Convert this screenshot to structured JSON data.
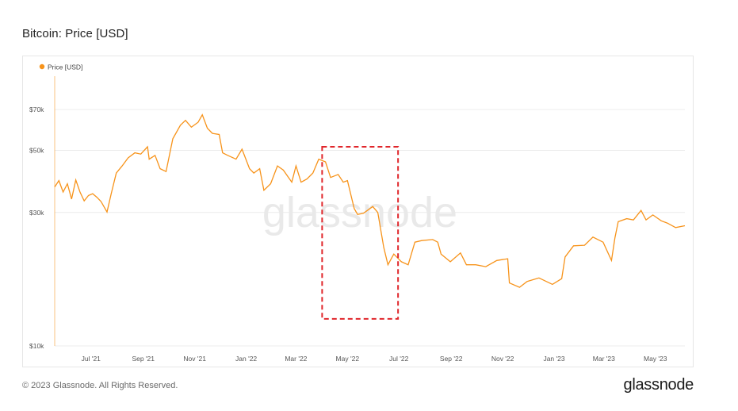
{
  "header": {
    "title": "Bitcoin: Price [USD]"
  },
  "footer": {
    "copyright": "© 2023 Glassnode. All Rights Reserved.",
    "brand": "glassnode"
  },
  "watermark": "glassnode",
  "colors": {
    "series": "#f7931a",
    "highlight": "#e0262b",
    "grid": "#ececec",
    "axis_text": "#555555"
  },
  "chart_data": {
    "type": "line",
    "title": "Bitcoin: Price [USD]",
    "xlabel": "",
    "ylabel": "",
    "x_ticks": [
      "Jul '21",
      "Sep '21",
      "Nov '21",
      "Jan '22",
      "Mar '22",
      "May '22",
      "Jul '22",
      "Sep '22",
      "Nov '22",
      "Jan '23",
      "Mar '23",
      "May '23"
    ],
    "y_ticks": [
      "$10k",
      "$30k",
      "$50k",
      "$70k"
    ],
    "y_tick_values": [
      10000,
      30000,
      50000,
      70000
    ],
    "ylim": [
      10000,
      70000
    ],
    "y_scale": "log",
    "xlim": [
      "2021-05-19",
      "2023-06-05"
    ],
    "legend": {
      "position": "top-left"
    },
    "grid": {
      "horizontal": true,
      "vertical": false
    },
    "series": [
      {
        "name": "Price [USD]",
        "color": "#f7931a",
        "x": [
          "2021-05-19",
          "2021-05-24",
          "2021-05-29",
          "2021-06-03",
          "2021-06-08",
          "2021-06-13",
          "2021-06-18",
          "2021-06-23",
          "2021-06-28",
          "2021-07-03",
          "2021-07-08",
          "2021-07-13",
          "2021-07-20",
          "2021-07-25",
          "2021-07-31",
          "2021-08-07",
          "2021-08-14",
          "2021-08-22",
          "2021-08-29",
          "2021-09-06",
          "2021-09-08",
          "2021-09-15",
          "2021-09-21",
          "2021-09-28",
          "2021-10-06",
          "2021-10-15",
          "2021-10-21",
          "2021-10-28",
          "2021-11-05",
          "2021-11-10",
          "2021-11-16",
          "2021-11-22",
          "2021-11-30",
          "2021-12-04",
          "2021-12-10",
          "2021-12-20",
          "2021-12-27",
          "2022-01-05",
          "2022-01-10",
          "2022-01-17",
          "2022-01-22",
          "2022-01-30",
          "2022-02-07",
          "2022-02-14",
          "2022-02-24",
          "2022-03-01",
          "2022-03-07",
          "2022-03-14",
          "2022-03-21",
          "2022-03-28",
          "2022-04-05",
          "2022-04-11",
          "2022-04-20",
          "2022-04-26",
          "2022-05-01",
          "2022-05-09",
          "2022-05-13",
          "2022-05-20",
          "2022-05-31",
          "2022-06-06",
          "2022-06-13",
          "2022-06-18",
          "2022-06-25",
          "2022-07-04",
          "2022-07-12",
          "2022-07-20",
          "2022-07-28",
          "2022-08-10",
          "2022-08-16",
          "2022-08-20",
          "2022-08-31",
          "2022-09-12",
          "2022-09-19",
          "2022-09-30",
          "2022-10-12",
          "2022-10-25",
          "2022-11-07",
          "2022-11-09",
          "2022-11-21",
          "2022-11-30",
          "2022-12-14",
          "2022-12-30",
          "2023-01-10",
          "2023-01-14",
          "2023-01-24",
          "2023-02-06",
          "2023-02-16",
          "2023-02-28",
          "2023-03-10",
          "2023-03-14",
          "2023-03-18",
          "2023-03-28",
          "2023-04-05",
          "2023-04-14",
          "2023-04-20",
          "2023-04-28",
          "2023-05-08",
          "2023-05-15",
          "2023-05-25",
          "2023-06-05"
        ],
        "values": [
          37000,
          39000,
          35500,
          38000,
          33500,
          39200,
          35500,
          33000,
          34500,
          35000,
          34000,
          32800,
          30100,
          35000,
          41500,
          44000,
          47000,
          49000,
          48500,
          51500,
          46500,
          48000,
          43000,
          42000,
          55000,
          61500,
          64000,
          60500,
          63000,
          67000,
          60000,
          57500,
          57000,
          49000,
          48000,
          46500,
          50500,
          43000,
          41500,
          43000,
          36000,
          38000,
          44000,
          42500,
          38500,
          44000,
          38500,
          39500,
          41500,
          46500,
          45500,
          40000,
          41000,
          38500,
          39000,
          31000,
          29500,
          29800,
          31500,
          30000,
          22500,
          19500,
          21300,
          20000,
          19500,
          23500,
          23800,
          24000,
          23500,
          21300,
          20000,
          21500,
          19500,
          19500,
          19200,
          20200,
          20500,
          16800,
          16200,
          17000,
          17500,
          16600,
          17400,
          20800,
          22800,
          22900,
          24500,
          23500,
          20200,
          24300,
          27800,
          28500,
          28200,
          30500,
          28200,
          29400,
          28000,
          27500,
          26500,
          26900
        ]
      }
    ],
    "annotations": [
      {
        "type": "dashed-rectangle",
        "x_range": [
          "2022-04-01",
          "2022-06-30"
        ],
        "y_range": [
          12500,
          51500
        ],
        "color": "#e0262b"
      }
    ]
  }
}
